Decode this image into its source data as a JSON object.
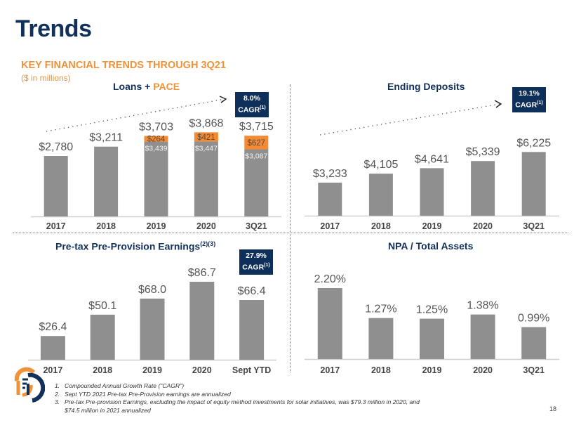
{
  "page": {
    "title": "Trends",
    "subtitle": "KEY FINANCIAL TRENDS THROUGH 3Q21",
    "units": "($ in millions)",
    "page_number": "18",
    "colors": {
      "navy": "#11305a",
      "orange": "#f0923a",
      "bar_gray": "#8f8f8f",
      "pace_orange": "#f58a33"
    }
  },
  "panels": {
    "loans": {
      "title_main": "Loans + ",
      "title_accent": "PACE",
      "cagr_value": "8.0%",
      "cagr_label": "CAGR",
      "cagr_note": "(1)"
    },
    "deposits": {
      "title": "Ending Deposits",
      "cagr_value": "19.1%",
      "cagr_label": "CAGR",
      "cagr_note": "(1)"
    },
    "pppe": {
      "title": "Pre-tax Pre-Provision Earnings",
      "title_note": "(2)(3)",
      "cagr_value": "27.9%",
      "cagr_label": "CAGR",
      "cagr_note": "(1)"
    },
    "npa": {
      "title": "NPA / Total Assets"
    }
  },
  "footnotes": [
    {
      "num": "1.",
      "text": "Compounded Annual Growth Rate (\"CAGR\")"
    },
    {
      "num": "2.",
      "text": "Sept YTD 2021 Pre-tax Pre-Provision earnings are annualized"
    },
    {
      "num": "3.",
      "text": "Pre-tax Pre-provision Earnings, excluding the impact of equity method investments for solar initiatives, was $79.3 million in 2020, and",
      "cont": "$74.5 million in 2021 annualized"
    }
  ],
  "chart_data": [
    {
      "id": "loans",
      "type": "bar",
      "stacked": true,
      "title": "Loans + PACE",
      "categories": [
        "2017",
        "2018",
        "2019",
        "2020",
        "3Q21"
      ],
      "series": [
        {
          "name": "Loans",
          "values": [
            2780,
            3211,
            3439,
            3447,
            3087
          ],
          "labels": [
            null,
            null,
            "$3,439",
            "$3,447",
            "$3,087"
          ]
        },
        {
          "name": "PACE",
          "values": [
            0,
            0,
            264,
            421,
            627
          ],
          "labels": [
            null,
            null,
            "$264",
            "$421",
            "$627"
          ]
        }
      ],
      "totals": [
        2780,
        3211,
        3703,
        3868,
        3715
      ],
      "total_labels": [
        "$2,780",
        "$3,211",
        "$3,703",
        "$3,868",
        "$3,715"
      ],
      "annotation": "8.0% CAGR(1)",
      "ylim": [
        0,
        4300
      ]
    },
    {
      "id": "deposits",
      "type": "bar",
      "title": "Ending Deposits",
      "categories": [
        "2017",
        "2018",
        "2019",
        "2020",
        "3Q21"
      ],
      "values": [
        3233,
        4105,
        4641,
        5339,
        6225
      ],
      "labels": [
        "$3,233",
        "$4,105",
        "$4,641",
        "$5,339",
        "$6,225"
      ],
      "annotation": "19.1% CAGR(1)",
      "ylim": [
        0,
        8100
      ]
    },
    {
      "id": "pppe",
      "type": "bar",
      "title": "Pre-tax Pre-Provision Earnings(2)(3)",
      "categories": [
        "2017",
        "2018",
        "2019",
        "2020",
        "Sept YTD"
      ],
      "values": [
        26.4,
        50.1,
        68.0,
        86.7,
        66.4
      ],
      "labels": [
        "$26.4",
        "$50.1",
        "$68.0",
        "$86.7",
        "$66.4"
      ],
      "annotation": "27.9% CAGR(1)",
      "ylim": [
        0,
        100
      ]
    },
    {
      "id": "npa",
      "type": "bar",
      "title": "NPA / Total Assets",
      "categories": [
        "2017",
        "2018",
        "2019",
        "2020",
        "3Q21"
      ],
      "values": [
        2.2,
        1.27,
        1.25,
        1.38,
        0.99
      ],
      "labels": [
        "2.20%",
        "1.27%",
        "1.25%",
        "1.38%",
        "0.99%"
      ],
      "ylim": [
        0,
        2.33
      ]
    }
  ]
}
